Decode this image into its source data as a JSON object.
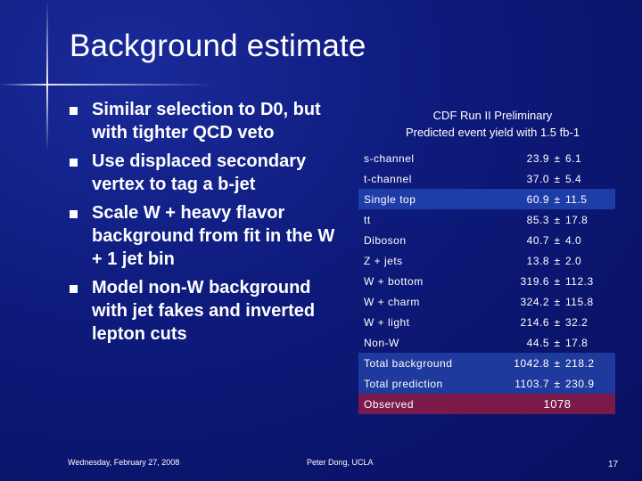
{
  "slide": {
    "title": "Background estimate",
    "bullets": [
      "Similar selection to D0, but with tighter QCD veto",
      "Use displaced secondary vertex to tag a b-jet",
      "Scale W + heavy flavor background from fit in the W + 1 jet bin",
      "Model non-W background with jet fakes and inverted lepton cuts"
    ],
    "caption_line1": "CDF Run II Preliminary",
    "caption_line2": "Predicted event yield with 1.5 fb-1",
    "table": {
      "rows": [
        {
          "label": "s-channel",
          "value": "23.9",
          "pm": "±",
          "err": "6.1"
        },
        {
          "label": "t-channel",
          "value": "37.0",
          "pm": "±",
          "err": "5.4"
        },
        {
          "label": "Single top",
          "value": "60.9",
          "pm": "±",
          "err": "11.5"
        },
        {
          "label": "tt",
          "value": "85.3",
          "pm": "±",
          "err": "17.8"
        },
        {
          "label": "Diboson",
          "value": "40.7",
          "pm": "±",
          "err": "4.0"
        },
        {
          "label": "Z + jets",
          "value": "13.8",
          "pm": "±",
          "err": "2.0"
        },
        {
          "label": "W + bottom",
          "value": "319.6",
          "pm": "±",
          "err": "112.3"
        },
        {
          "label": "W + charm",
          "value": "324.2",
          "pm": "±",
          "err": "115.8"
        },
        {
          "label": "W + light",
          "value": "214.6",
          "pm": "±",
          "err": "32.2"
        },
        {
          "label": "Non-W",
          "value": "44.5",
          "pm": "±",
          "err": "17.8"
        },
        {
          "label": "Total background",
          "value": "1042.8",
          "pm": "±",
          "err": "218.2"
        },
        {
          "label": "Total prediction",
          "value": "1103.7",
          "pm": "±",
          "err": "230.9"
        }
      ],
      "observed_label": "Observed",
      "observed_value": "1078"
    },
    "footer_date": "Wednesday, February 27, 2008",
    "footer_author": "Peter Dong, UCLA",
    "page_number": "17"
  }
}
